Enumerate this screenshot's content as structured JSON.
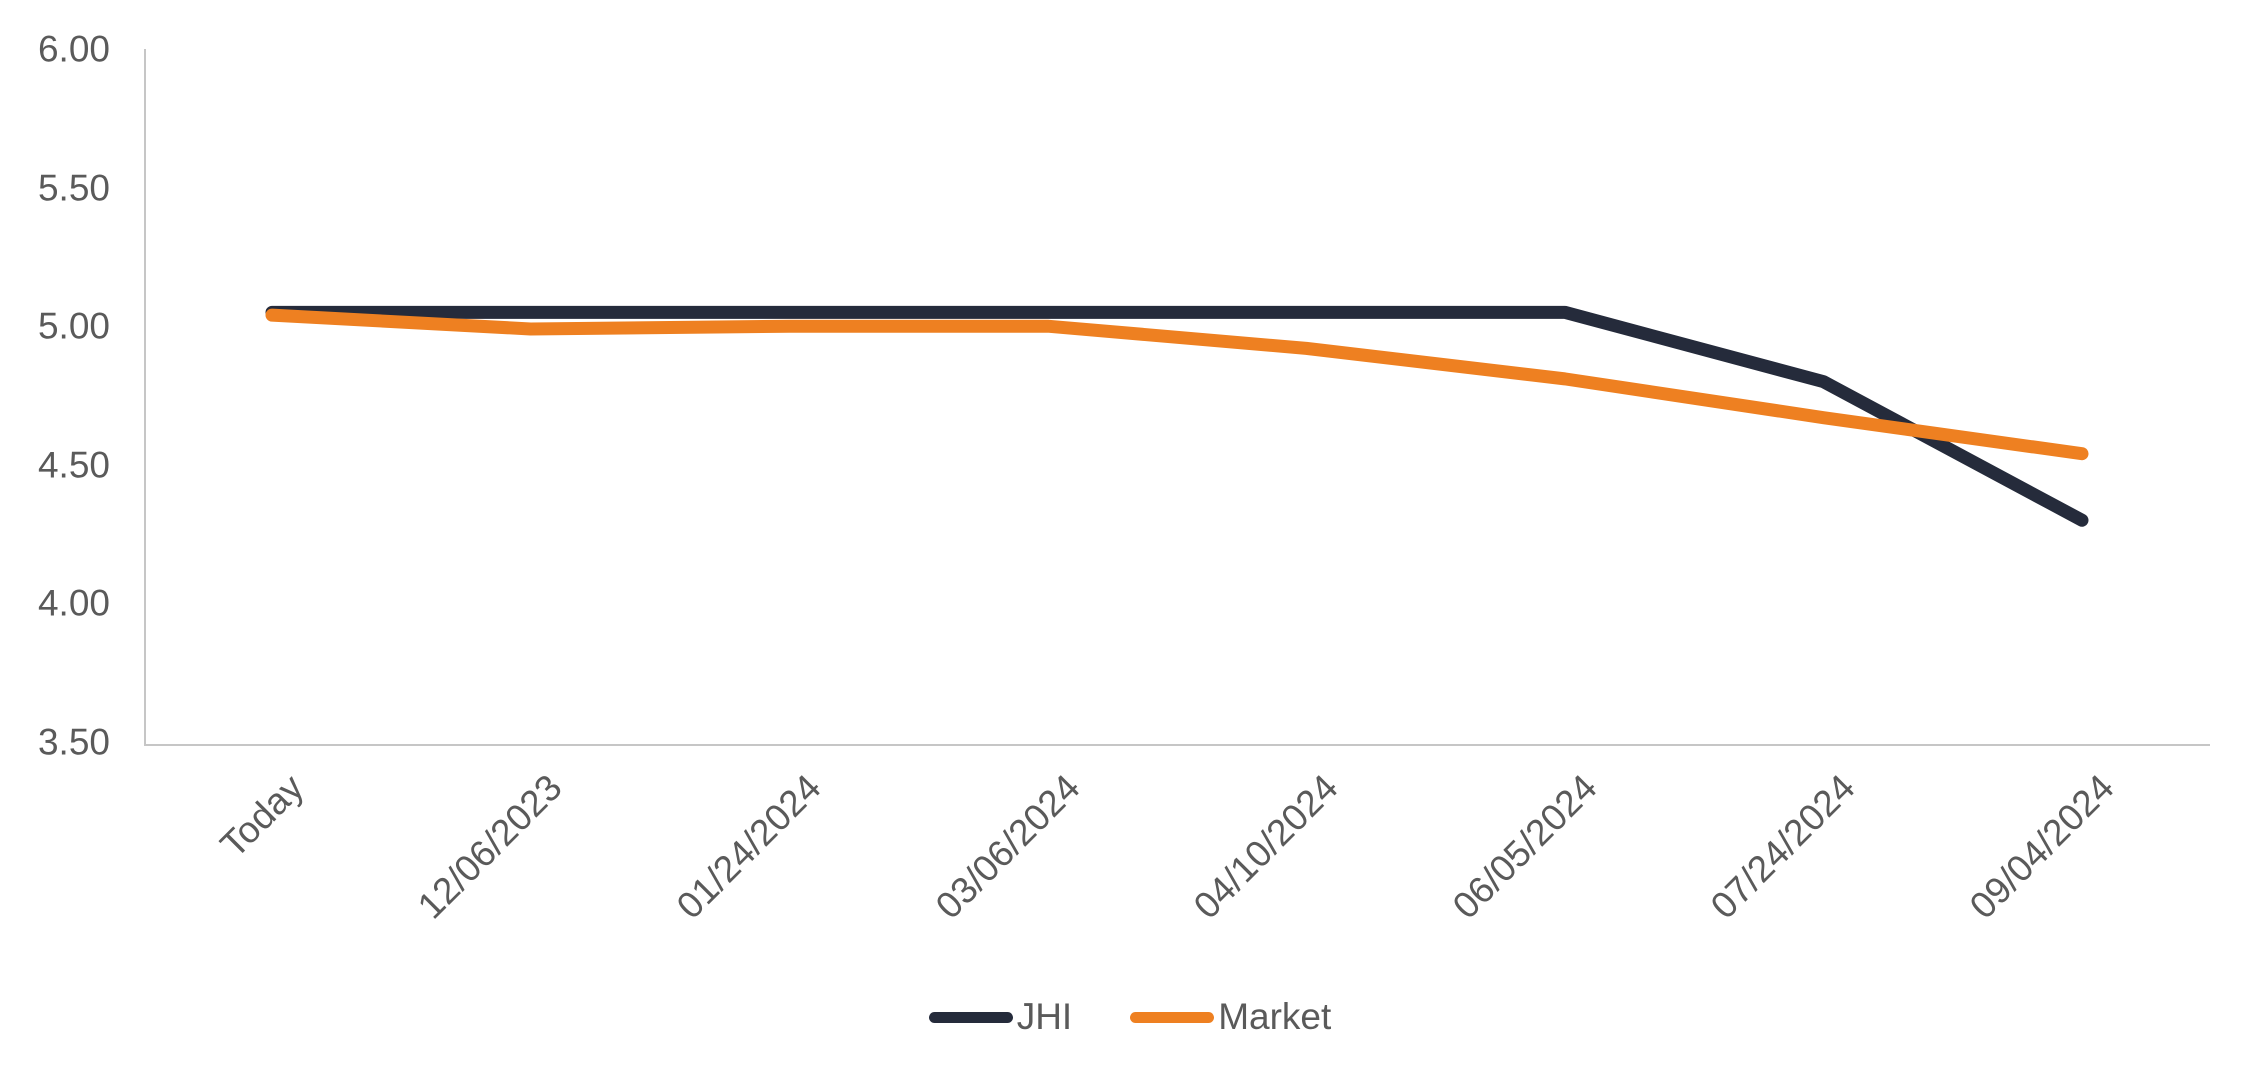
{
  "chart_data": {
    "type": "line",
    "categories": [
      "Today",
      "12/06/2023",
      "01/24/2024",
      "03/06/2024",
      "04/10/2024",
      "06/05/2024",
      "07/24/2024",
      "09/04/2024"
    ],
    "series": [
      {
        "name": "JHI",
        "color": "#252b3b",
        "values": [
          5.05,
          5.05,
          5.05,
          5.05,
          5.05,
          5.05,
          4.8,
          4.3
        ]
      },
      {
        "name": "Market",
        "color": "#ee8021",
        "values": [
          5.04,
          4.99,
          5.0,
          5.0,
          4.92,
          4.81,
          4.67,
          4.54
        ]
      }
    ],
    "title": "",
    "xlabel": "",
    "ylabel": "",
    "y_ticks": [
      "6.00",
      "5.50",
      "5.00",
      "4.50",
      "4.00",
      "3.50"
    ],
    "y_tick_values": [
      6.0,
      5.5,
      5.0,
      4.5,
      4.0,
      3.5
    ],
    "ylim": [
      3.5,
      6.0
    ],
    "grid": false,
    "legend_position": "bottom",
    "colors": {
      "axis_line": "#c6c6c6",
      "tick_label": "#5a5a5a",
      "legend_label": "#5a5a5a",
      "background": "#ffffff"
    }
  }
}
